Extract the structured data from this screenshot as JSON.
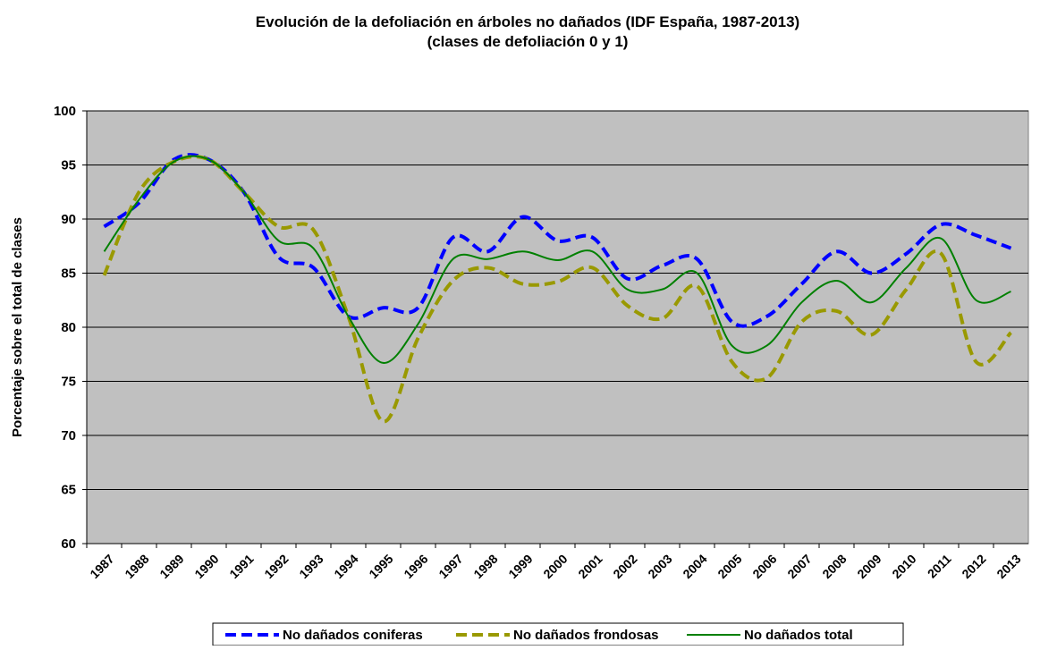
{
  "chart_data": {
    "type": "line",
    "title": "Evolución de la defoliación en árboles no dañados (IDF España, 1987-2013)",
    "subtitle": "(clases de defoliación 0 y 1)",
    "y_label": "Porcentaje sobre el total de clases",
    "categories": [
      "1987",
      "1988",
      "1989",
      "1990",
      "1991",
      "1992",
      "1993",
      "1994",
      "1995",
      "1996",
      "1997",
      "1998",
      "1999",
      "2000",
      "2001",
      "2002",
      "2003",
      "2004",
      "2005",
      "2006",
      "2007",
      "2008",
      "2009",
      "2010",
      "2011",
      "2012",
      "2013"
    ],
    "series": [
      {
        "name": "No dañados coniferas",
        "color": "#0000ff",
        "dash": "dashed",
        "values": [
          89.3,
          91.5,
          95.5,
          95.5,
          92.5,
          86.5,
          85.5,
          81.0,
          81.8,
          81.8,
          88.3,
          87.0,
          90.2,
          88.0,
          88.3,
          84.5,
          85.7,
          86.3,
          80.5,
          81.0,
          84.0,
          87.0,
          85.0,
          86.8,
          89.5,
          88.5,
          87.3
        ]
      },
      {
        "name": "No dañados frondosas",
        "color": "#999900",
        "dash": "dashed",
        "values": [
          84.8,
          92.5,
          95.3,
          95.5,
          92.5,
          89.3,
          89.0,
          81.0,
          71.3,
          79.0,
          84.3,
          85.5,
          84.0,
          84.2,
          85.5,
          82.0,
          80.8,
          83.8,
          76.8,
          75.3,
          80.5,
          81.5,
          79.3,
          83.5,
          86.8,
          76.8,
          79.5
        ]
      },
      {
        "name": "No dañados total",
        "color": "#008000",
        "dash": "solid",
        "values": [
          87.0,
          91.8,
          95.3,
          95.5,
          92.5,
          88.0,
          87.3,
          81.0,
          76.7,
          80.3,
          86.3,
          86.3,
          87.0,
          86.2,
          87.0,
          83.5,
          83.5,
          85.0,
          78.3,
          78.3,
          82.3,
          84.3,
          82.3,
          85.5,
          88.2,
          82.5,
          83.3
        ]
      }
    ],
    "ylim": [
      60,
      100
    ],
    "yticks": [
      60,
      65,
      70,
      75,
      80,
      85,
      90,
      95,
      100
    ],
    "grid": true,
    "legend": "bottom",
    "background": "#c0c0c0"
  }
}
